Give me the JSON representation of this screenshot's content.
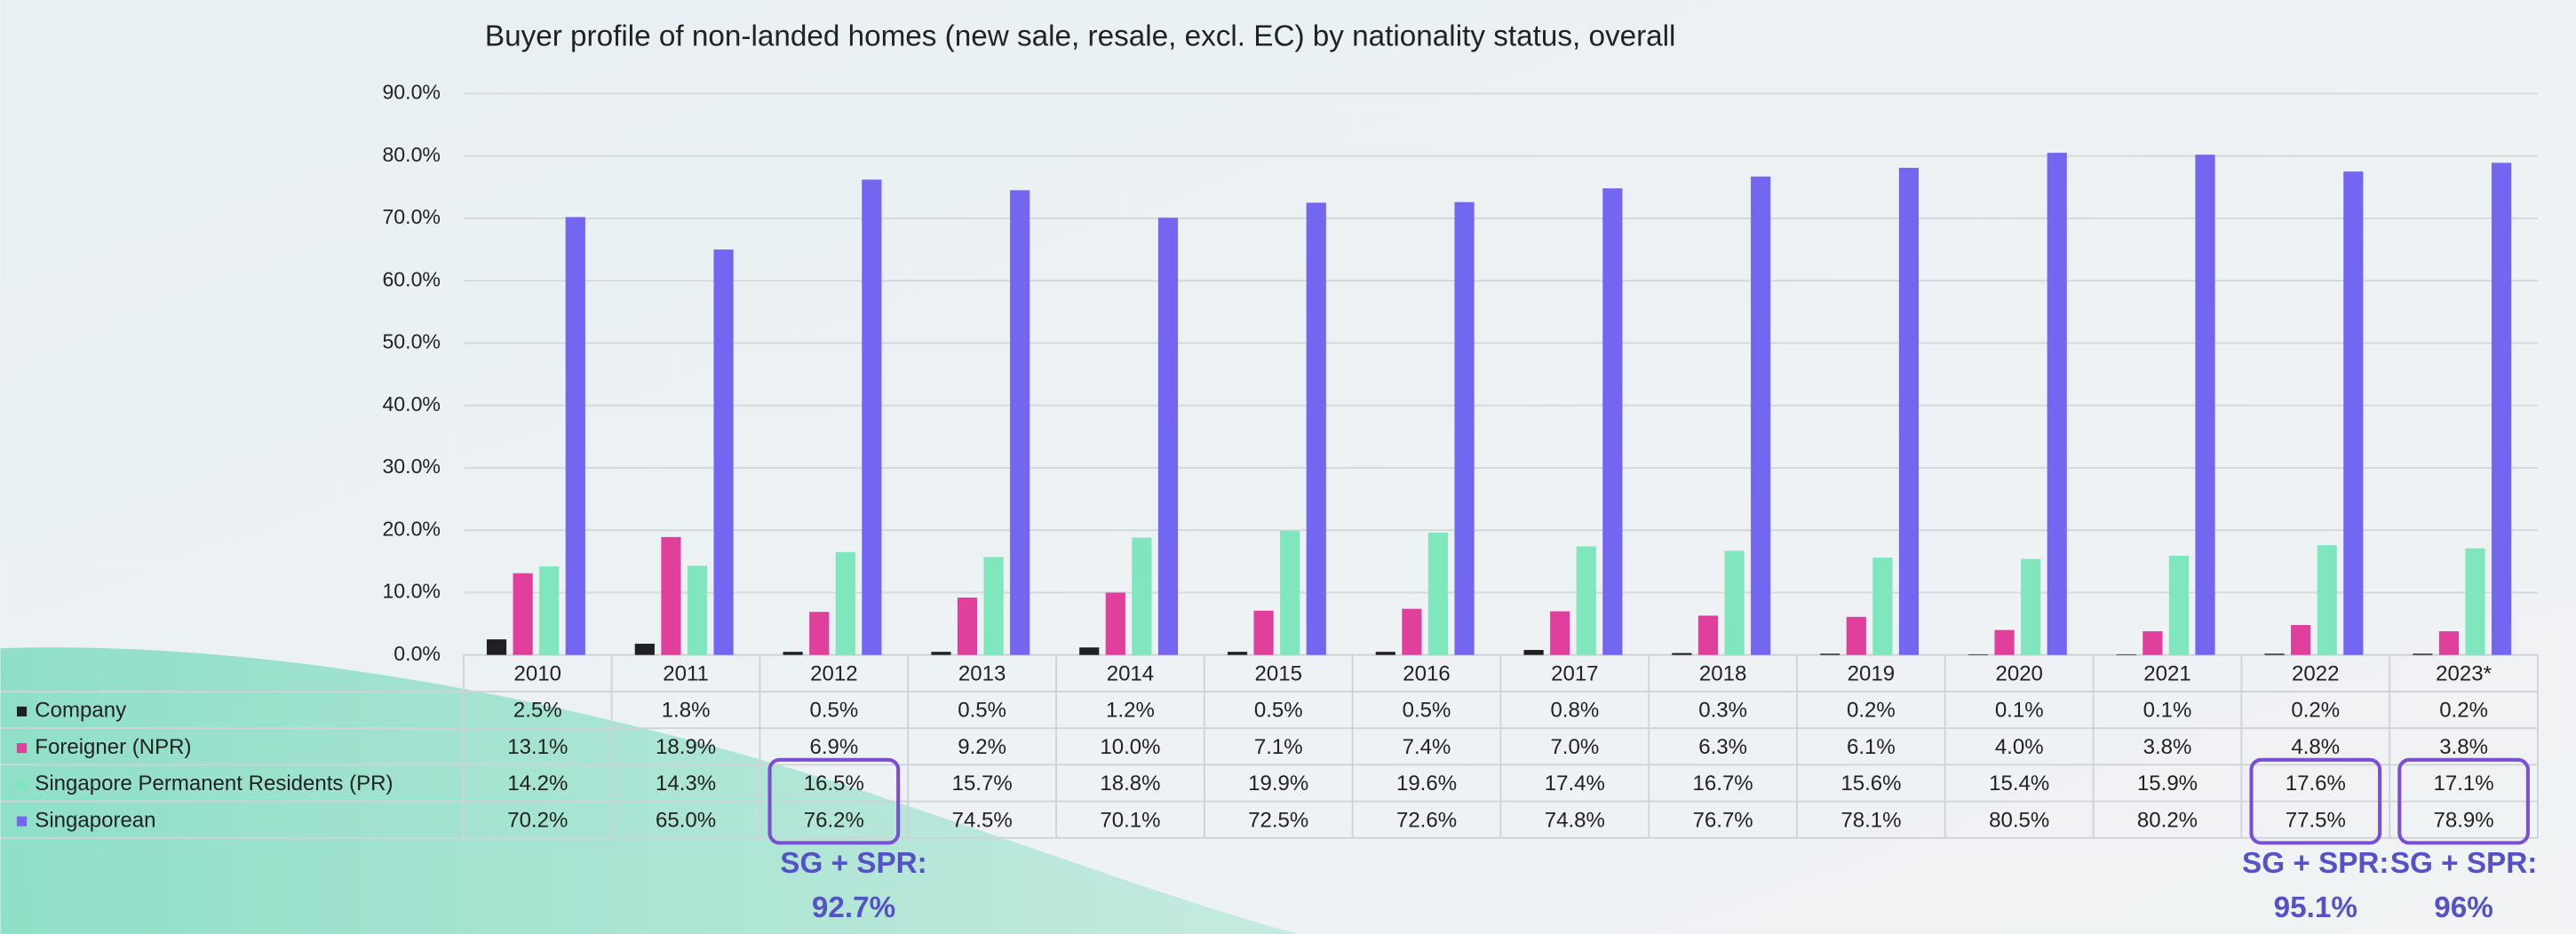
{
  "chart_data": {
    "type": "bar",
    "title": "Buyer profile of non-landed homes (new sale, resale, excl. EC) by nationality status, overall",
    "categories": [
      "2010",
      "2011",
      "2012",
      "2013",
      "2014",
      "2015",
      "2016",
      "2017",
      "2018",
      "2019",
      "2020",
      "2021",
      "2022",
      "2023*"
    ],
    "series": [
      {
        "name": "Company",
        "color": "#1f1f24",
        "values": [
          2.5,
          1.8,
          0.5,
          0.5,
          1.2,
          0.5,
          0.5,
          0.8,
          0.3,
          0.2,
          0.1,
          0.1,
          0.2,
          0.2
        ],
        "value_labels": [
          "2.5%",
          "1.8%",
          "0.5%",
          "0.5%",
          "1.2%",
          "0.5%",
          "0.5%",
          "0.8%",
          "0.3%",
          "0.2%",
          "0.1%",
          "0.1%",
          "0.2%",
          "0.2%"
        ]
      },
      {
        "name": "Foreigner (NPR)",
        "color": "#e0409c",
        "values": [
          13.1,
          18.9,
          6.9,
          9.2,
          10.0,
          7.1,
          7.4,
          7.0,
          6.3,
          6.1,
          4.0,
          3.8,
          4.8,
          3.8
        ],
        "value_labels": [
          "13.1%",
          "18.9%",
          "6.9%",
          "9.2%",
          "10.0%",
          "7.1%",
          "7.4%",
          "7.0%",
          "6.3%",
          "6.1%",
          "4.0%",
          "3.8%",
          "4.8%",
          "3.8%"
        ]
      },
      {
        "name": "Singapore Permanent Residents (PR)",
        "color": "#7fe6bd",
        "values": [
          14.2,
          14.3,
          16.5,
          15.7,
          18.8,
          19.9,
          19.6,
          17.4,
          16.7,
          15.6,
          15.4,
          15.9,
          17.6,
          17.1
        ],
        "value_labels": [
          "14.2%",
          "14.3%",
          "16.5%",
          "15.7%",
          "18.8%",
          "19.9%",
          "19.6%",
          "17.4%",
          "16.7%",
          "15.6%",
          "15.4%",
          "15.9%",
          "17.6%",
          "17.1%"
        ]
      },
      {
        "name": "Singaporean",
        "color": "#7366f0",
        "values": [
          70.2,
          65.0,
          76.2,
          74.5,
          70.1,
          72.5,
          72.6,
          74.8,
          76.7,
          78.1,
          80.5,
          80.2,
          77.5,
          78.9
        ],
        "value_labels": [
          "70.2%",
          "65.0%",
          "76.2%",
          "74.5%",
          "70.1%",
          "72.5%",
          "72.6%",
          "74.8%",
          "76.7%",
          "78.1%",
          "80.5%",
          "80.2%",
          "77.5%",
          "78.9%"
        ]
      }
    ],
    "ylim": [
      0,
      90
    ],
    "yticks": [
      {
        "value": 0,
        "label": "0.0%"
      },
      {
        "value": 10,
        "label": "10.0%"
      },
      {
        "value": 20,
        "label": "20.0%"
      },
      {
        "value": 30,
        "label": "30.0%"
      },
      {
        "value": 40,
        "label": "40.0%"
      },
      {
        "value": 50,
        "label": "50.0%"
      },
      {
        "value": 60,
        "label": "60.0%"
      },
      {
        "value": 70,
        "label": "70.0%"
      },
      {
        "value": 80,
        "label": "80.0%"
      },
      {
        "value": 90,
        "label": "90.0%"
      }
    ],
    "grid": true,
    "annotations": [
      [
        "SG + SPR:",
        "92.7%"
      ],
      [
        "SG + SPR:",
        "95.1%"
      ],
      [
        "SG + SPR:",
        "96%"
      ]
    ]
  }
}
